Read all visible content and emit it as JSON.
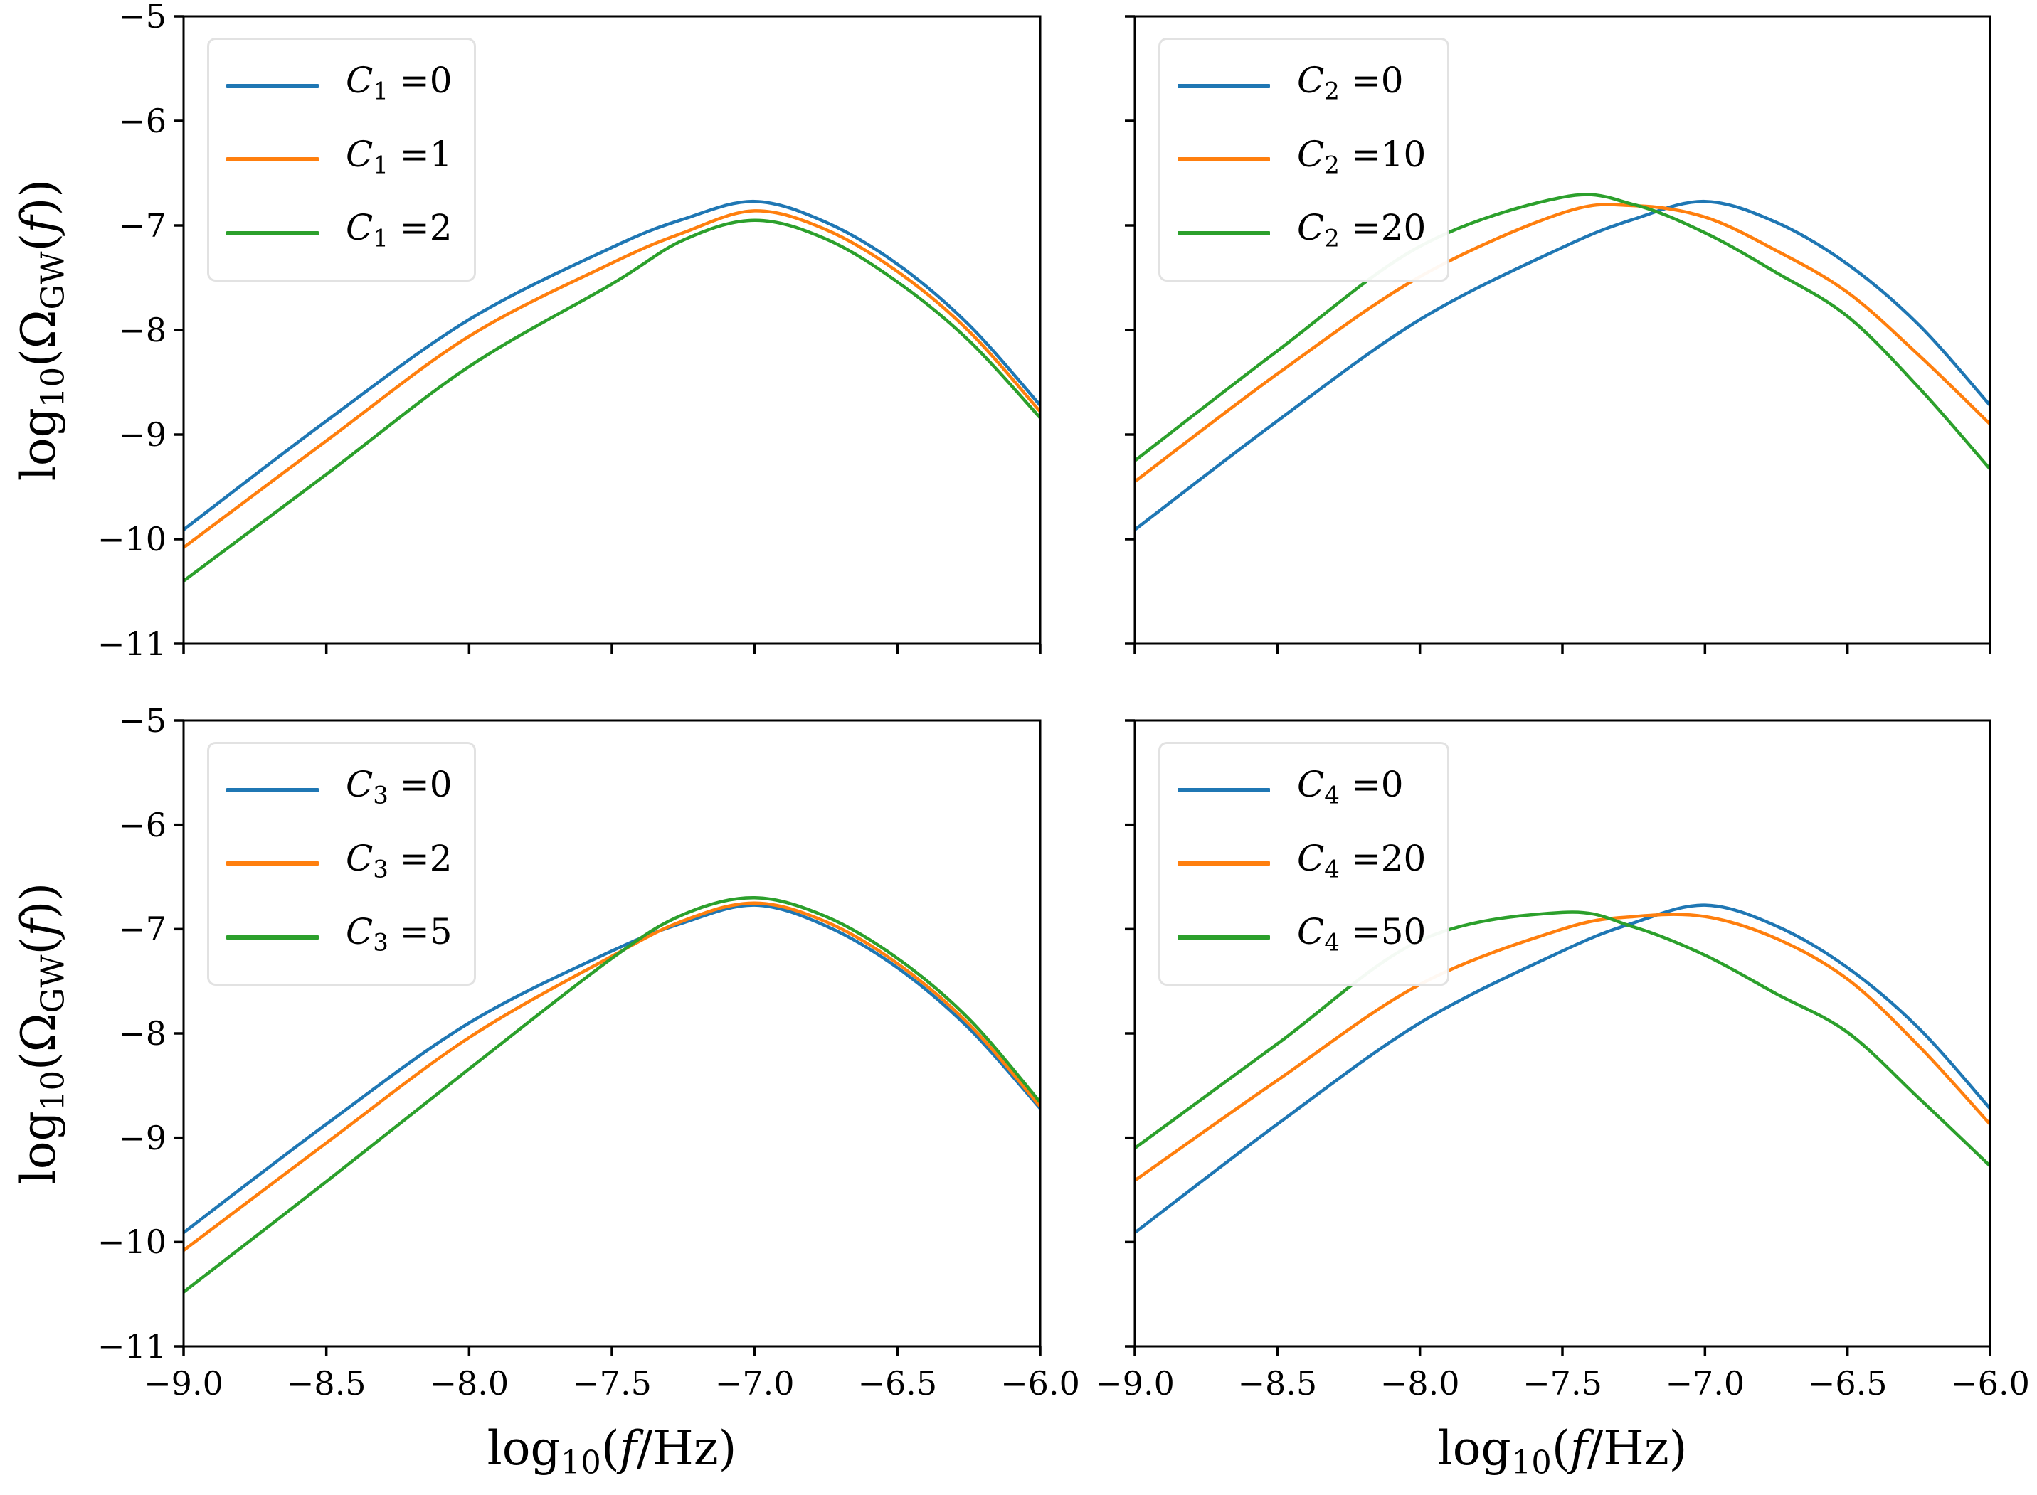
{
  "figure": {
    "background": "#ffffff"
  },
  "colors": {
    "series_blue": "#1f77b4",
    "series_orange": "#ff7f0e",
    "series_green": "#2ca02c",
    "spine": "#000000",
    "legend_border": "#e2e2e2",
    "text": "#000000"
  },
  "axes": {
    "xlim": [
      -9.0,
      -6.0
    ],
    "ylim": [
      -11.0,
      -5.0
    ],
    "xtick_values": [
      -9.0,
      -8.5,
      -8.0,
      -7.5,
      -7.0,
      -6.5,
      -6.0
    ],
    "xtick_labels": [
      "−9.0",
      "−8.5",
      "−8.0",
      "−7.5",
      "−7.0",
      "−6.5",
      "−6.0"
    ],
    "ytick_values": [
      -5,
      -6,
      -7,
      -8,
      -9,
      -10,
      -11
    ],
    "ytick_labels": [
      "−5",
      "−6",
      "−7",
      "−8",
      "−9",
      "−10",
      "−11"
    ],
    "grid": false,
    "xlabel_text": "log_10(f/Hz)",
    "ylabel_text": "log_10(Ω_GW(f))",
    "xlabel_segments": [
      {
        "t": "log"
      },
      {
        "t": "10",
        "sub": true
      },
      {
        "t": "("
      },
      {
        "t": "f",
        "it": true
      },
      {
        "t": "/Hz"
      },
      {
        "t": ")"
      }
    ],
    "ylabel_segments": [
      {
        "t": "log"
      },
      {
        "t": "10",
        "sub": true
      },
      {
        "t": "("
      },
      {
        "t": "Ω"
      },
      {
        "t": "GW",
        "sub": true
      },
      {
        "t": "("
      },
      {
        "t": "f",
        "it": true
      },
      {
        "t": "))"
      }
    ]
  },
  "chart_data": [
    {
      "id": "top-left",
      "type": "line",
      "legend_position": "upper left",
      "x": [
        -9.0,
        -8.5,
        -8.0,
        -7.5,
        -7.25,
        -7.0,
        -6.75,
        -6.5,
        -6.25,
        -6.0
      ],
      "series": [
        {
          "name": "C_1 =0",
          "color_key": "series_blue",
          "label_segments": [
            {
              "t": "C",
              "it": true
            },
            {
              "t": "1",
              "sub": true
            },
            {
              "t": " ="
            },
            {
              "t": "0"
            }
          ],
          "y": [
            -9.91,
            -8.87,
            -7.9,
            -7.21,
            -6.94,
            -6.77,
            -6.97,
            -7.37,
            -7.95,
            -8.72
          ]
        },
        {
          "name": "C_1 =1",
          "color_key": "series_orange",
          "label_segments": [
            {
              "t": "C",
              "it": true
            },
            {
              "t": "1",
              "sub": true
            },
            {
              "t": " ="
            },
            {
              "t": "1"
            }
          ],
          "y": [
            -10.08,
            -9.06,
            -8.06,
            -7.36,
            -7.07,
            -6.86,
            -7.04,
            -7.44,
            -8.01,
            -8.78
          ]
        },
        {
          "name": "C_1 =2",
          "color_key": "series_green",
          "label_segments": [
            {
              "t": "C",
              "it": true
            },
            {
              "t": "1",
              "sub": true
            },
            {
              "t": " ="
            },
            {
              "t": "2"
            }
          ],
          "y": [
            -10.4,
            -9.38,
            -8.35,
            -7.56,
            -7.14,
            -6.95,
            -7.13,
            -7.54,
            -8.1,
            -8.84
          ]
        }
      ]
    },
    {
      "id": "top-right",
      "type": "line",
      "legend_position": "upper left",
      "x": [
        -9.0,
        -8.5,
        -8.0,
        -7.5,
        -7.25,
        -7.0,
        -6.75,
        -6.5,
        -6.25,
        -6.0
      ],
      "series": [
        {
          "name": "C_2 =0",
          "color_key": "series_blue",
          "label_segments": [
            {
              "t": "C",
              "it": true
            },
            {
              "t": "2",
              "sub": true
            },
            {
              "t": " ="
            },
            {
              "t": "0"
            }
          ],
          "y": [
            -9.91,
            -8.87,
            -7.9,
            -7.21,
            -6.94,
            -6.77,
            -6.97,
            -7.37,
            -7.95,
            -8.72
          ]
        },
        {
          "name": "C_2 =10",
          "color_key": "series_orange",
          "label_segments": [
            {
              "t": "C",
              "it": true
            },
            {
              "t": "2",
              "sub": true
            },
            {
              "t": " ="
            },
            {
              "t": "10"
            }
          ],
          "y": [
            -9.45,
            -8.42,
            -7.49,
            -6.88,
            -6.81,
            -6.92,
            -7.24,
            -7.64,
            -8.24,
            -8.9
          ]
        },
        {
          "name": "C_2 =20",
          "color_key": "series_green",
          "label_segments": [
            {
              "t": "C",
              "it": true
            },
            {
              "t": "2",
              "sub": true
            },
            {
              "t": " ="
            },
            {
              "t": "20"
            }
          ],
          "y": [
            -9.25,
            -8.2,
            -7.2,
            -6.73,
            -6.8,
            -7.07,
            -7.45,
            -7.87,
            -8.55,
            -9.33
          ]
        }
      ]
    },
    {
      "id": "bottom-left",
      "type": "line",
      "legend_position": "upper left",
      "x": [
        -9.0,
        -8.5,
        -8.0,
        -7.5,
        -7.25,
        -7.0,
        -6.75,
        -6.5,
        -6.25,
        -6.0
      ],
      "series": [
        {
          "name": "C_3 =0",
          "color_key": "series_blue",
          "label_segments": [
            {
              "t": "C",
              "it": true
            },
            {
              "t": "3",
              "sub": true
            },
            {
              "t": " ="
            },
            {
              "t": "0"
            }
          ],
          "y": [
            -9.91,
            -8.87,
            -7.9,
            -7.21,
            -6.94,
            -6.77,
            -6.97,
            -7.37,
            -7.95,
            -8.72
          ]
        },
        {
          "name": "C_3 =2",
          "color_key": "series_orange",
          "label_segments": [
            {
              "t": "C",
              "it": true
            },
            {
              "t": "3",
              "sub": true
            },
            {
              "t": " ="
            },
            {
              "t": "2"
            }
          ],
          "y": [
            -10.08,
            -9.05,
            -8.04,
            -7.26,
            -6.92,
            -6.75,
            -6.93,
            -7.33,
            -7.91,
            -8.7
          ]
        },
        {
          "name": "C_3 =5",
          "color_key": "series_green",
          "label_segments": [
            {
              "t": "C",
              "it": true
            },
            {
              "t": "3",
              "sub": true
            },
            {
              "t": " ="
            },
            {
              "t": "5"
            }
          ],
          "y": [
            -10.48,
            -9.42,
            -8.34,
            -7.28,
            -6.86,
            -6.7,
            -6.88,
            -7.28,
            -7.86,
            -8.66
          ]
        }
      ]
    },
    {
      "id": "bottom-right",
      "type": "line",
      "legend_position": "upper left",
      "x": [
        -9.0,
        -8.5,
        -8.0,
        -7.5,
        -7.25,
        -7.0,
        -6.75,
        -6.5,
        -6.25,
        -6.0
      ],
      "series": [
        {
          "name": "C_4 =0",
          "color_key": "series_blue",
          "label_segments": [
            {
              "t": "C",
              "it": true
            },
            {
              "t": "4",
              "sub": true
            },
            {
              "t": " ="
            },
            {
              "t": "0"
            }
          ],
          "y": [
            -9.91,
            -8.87,
            -7.9,
            -7.21,
            -6.94,
            -6.77,
            -6.97,
            -7.37,
            -7.95,
            -8.72
          ]
        },
        {
          "name": "C_4 =20",
          "color_key": "series_orange",
          "label_segments": [
            {
              "t": "C",
              "it": true
            },
            {
              "t": "4",
              "sub": true
            },
            {
              "t": " ="
            },
            {
              "t": "20"
            }
          ],
          "y": [
            -9.41,
            -8.45,
            -7.53,
            -7.0,
            -6.88,
            -6.88,
            -7.09,
            -7.48,
            -8.12,
            -8.87
          ]
        },
        {
          "name": "C_4 =50",
          "color_key": "series_green",
          "label_segments": [
            {
              "t": "C",
              "it": true
            },
            {
              "t": "4",
              "sub": true
            },
            {
              "t": " ="
            },
            {
              "t": "50"
            }
          ],
          "y": [
            -9.1,
            -8.1,
            -7.11,
            -6.84,
            -6.98,
            -7.25,
            -7.62,
            -7.99,
            -8.62,
            -9.27
          ]
        }
      ]
    }
  ]
}
